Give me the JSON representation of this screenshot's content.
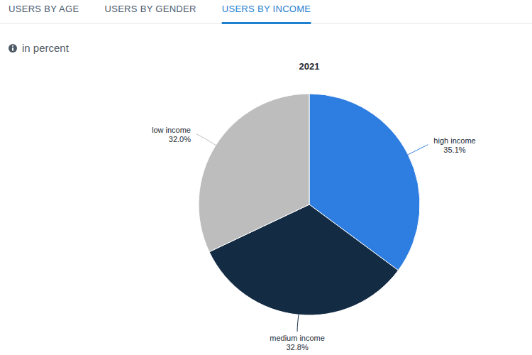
{
  "tabs": [
    "USERS BY AGE",
    "USERS BY GENDER",
    "USERS BY INCOME"
  ],
  "active_tab": 2,
  "chart_data": {
    "type": "pie",
    "title": "2021",
    "subtitle": "in percent",
    "categories": [
      "high income",
      "medium income",
      "low income"
    ],
    "values": [
      35.1,
      32.8,
      32.0
    ],
    "value_labels": [
      "35.1%",
      "32.8%",
      "32.0%"
    ],
    "colors": [
      "#2e7de1",
      "#132b43",
      "#bdbdbd"
    ],
    "data_labels": true
  }
}
